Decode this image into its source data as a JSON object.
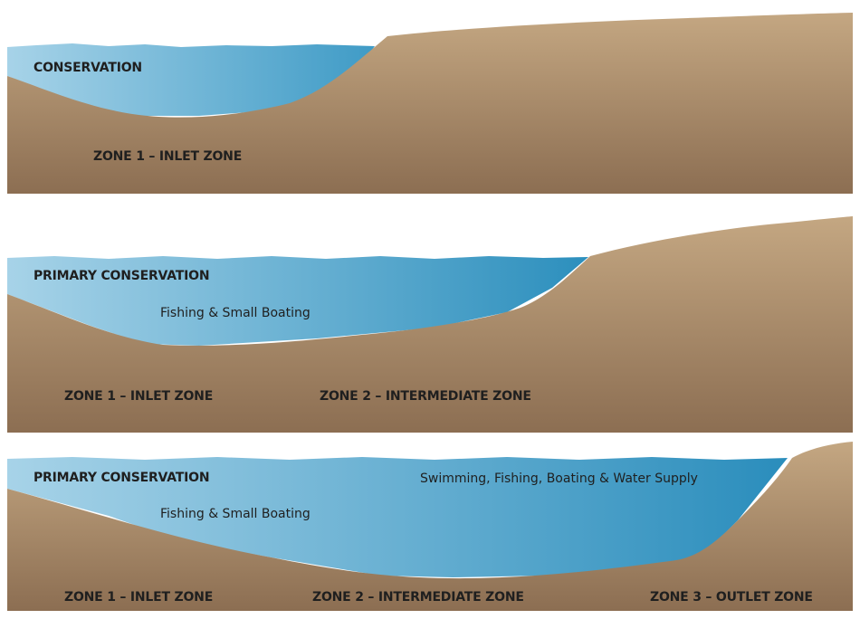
{
  "colors": {
    "earth_light": "#c4a782",
    "earth_dark": "#8c6e52",
    "water_light": "#a7d3e8",
    "water_dark": "#2c8fbd"
  },
  "panels": [
    {
      "pool_label": "CONSERVATION",
      "zones": [
        "ZONE 1 – INLET ZONE"
      ]
    },
    {
      "pool_label": "PRIMARY CONSERVATION",
      "uses": [
        "Fishing & Small Boating"
      ],
      "zones": [
        "ZONE 1 – INLET ZONE",
        "ZONE 2 – INTERMEDIATE  ZONE"
      ]
    },
    {
      "pool_label": "PRIMARY CONSERVATION",
      "uses": [
        "Fishing & Small Boating",
        "Swimming, Fishing, Boating & Water Supply"
      ],
      "zones": [
        "ZONE 1 – INLET ZONE",
        "ZONE 2 – INTERMEDIATE  ZONE",
        "ZONE 3 – OUTLET ZONE"
      ]
    }
  ]
}
